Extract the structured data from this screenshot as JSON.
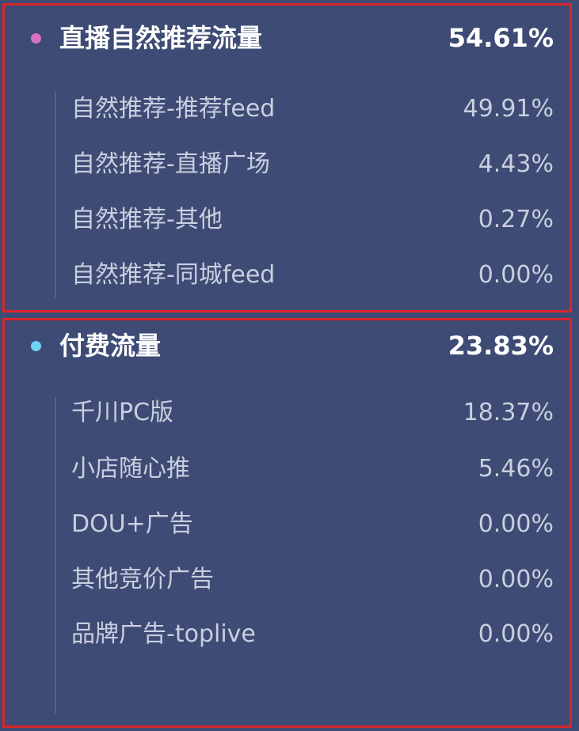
{
  "groups": [
    {
      "title": "直播自然推荐流量",
      "value": "54.61%",
      "items": [
        {
          "label": "自然推荐-推荐feed",
          "value": "49.91%"
        },
        {
          "label": "自然推荐-直播广场",
          "value": "4.43%"
        },
        {
          "label": "自然推荐-其他",
          "value": "0.27%"
        },
        {
          "label": "自然推荐-同城feed",
          "value": "0.00%"
        }
      ]
    },
    {
      "title": "付费流量",
      "value": "23.83%",
      "items": [
        {
          "label": "千川PC版",
          "value": "18.37%"
        },
        {
          "label": "小店随心推",
          "value": "5.46%"
        },
        {
          "label": "DOU+广告",
          "value": "0.00%"
        },
        {
          "label": "其他竞价广告",
          "value": "0.00%"
        },
        {
          "label": "品牌广告-toplive",
          "value": "0.00%"
        }
      ]
    }
  ]
}
